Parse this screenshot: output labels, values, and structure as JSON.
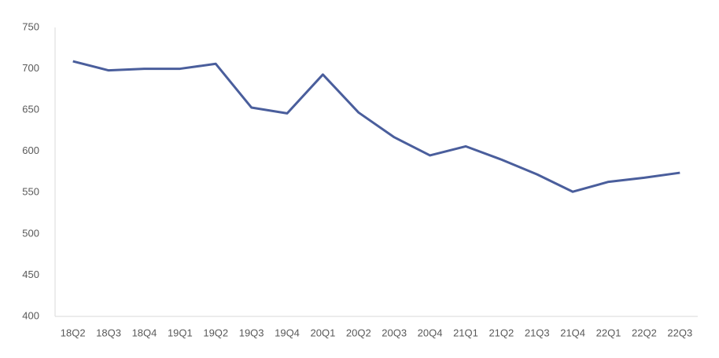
{
  "chart_data": {
    "type": "line",
    "categories": [
      "18Q2",
      "18Q3",
      "18Q4",
      "19Q1",
      "19Q2",
      "19Q3",
      "19Q4",
      "20Q1",
      "20Q2",
      "20Q3",
      "20Q4",
      "21Q1",
      "21Q2",
      "21Q3",
      "21Q4",
      "22Q1",
      "22Q2",
      "22Q3"
    ],
    "values": [
      709,
      698,
      700,
      700,
      706,
      653,
      646,
      693,
      647,
      617,
      595,
      606,
      590,
      572,
      551,
      563,
      568,
      574
    ],
    "color": "#4a5e9c",
    "ylim": [
      400,
      750
    ],
    "yticks": [
      400,
      450,
      500,
      550,
      600,
      650,
      700,
      750
    ],
    "grid": false
  }
}
